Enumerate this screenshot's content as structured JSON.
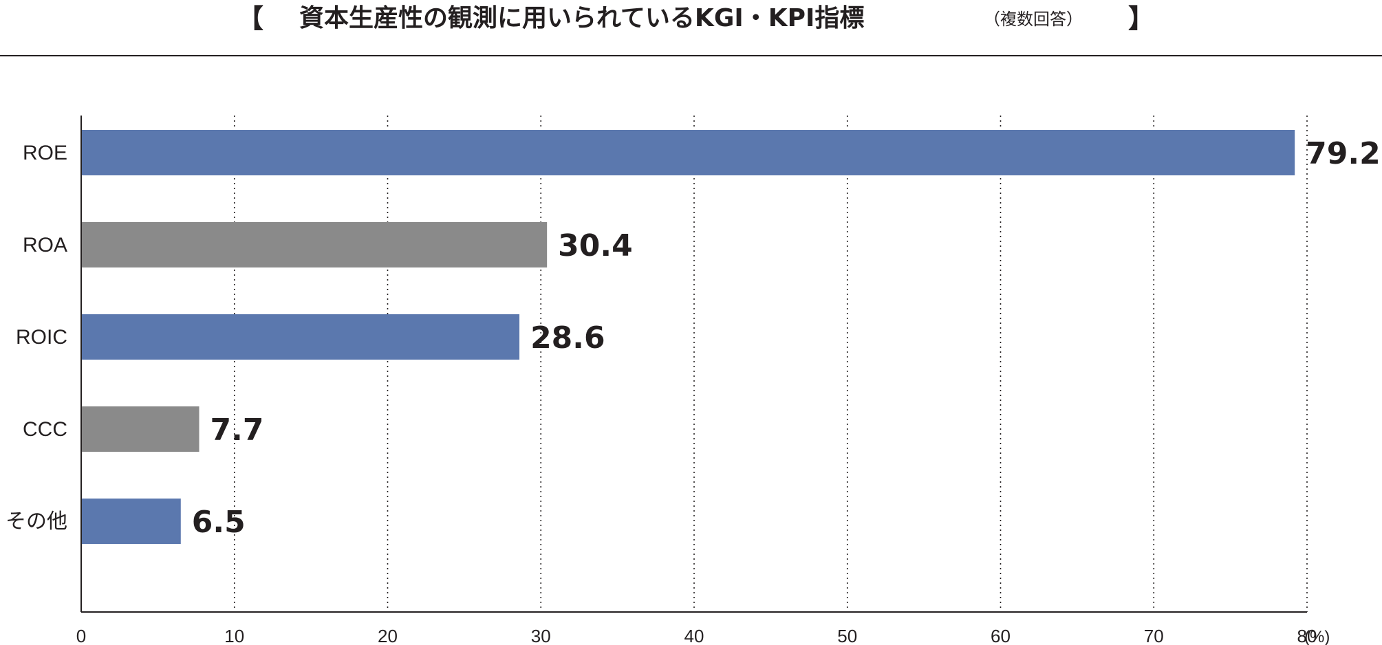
{
  "chart_data": {
    "type": "bar",
    "orientation": "horizontal",
    "title": "資本生産性の観測に用いられているKGI・KPI指標",
    "subtitle": "（複数回答）",
    "title_open_bracket": "【",
    "title_close_bracket": "】",
    "categories": [
      "ROE",
      "ROA",
      "ROIC",
      "CCC",
      "その他"
    ],
    "values": [
      79.2,
      30.4,
      28.6,
      7.7,
      6.5
    ],
    "value_labels": [
      "79.2",
      "30.4",
      "28.6",
      "7.7",
      "6.5"
    ],
    "xlim": [
      0,
      80
    ],
    "x_ticks": [
      0,
      10,
      20,
      30,
      40,
      50,
      60,
      70,
      80
    ],
    "x_tick_labels": [
      "0",
      "10",
      "20",
      "30",
      "40",
      "50",
      "60",
      "70",
      "80"
    ],
    "x_unit": "(%)",
    "grid": "vertical dotted",
    "bar_colors": [
      "#5b78ae",
      "#8a8a8a",
      "#5b78ae",
      "#8a8a8a",
      "#5b78ae"
    ]
  }
}
